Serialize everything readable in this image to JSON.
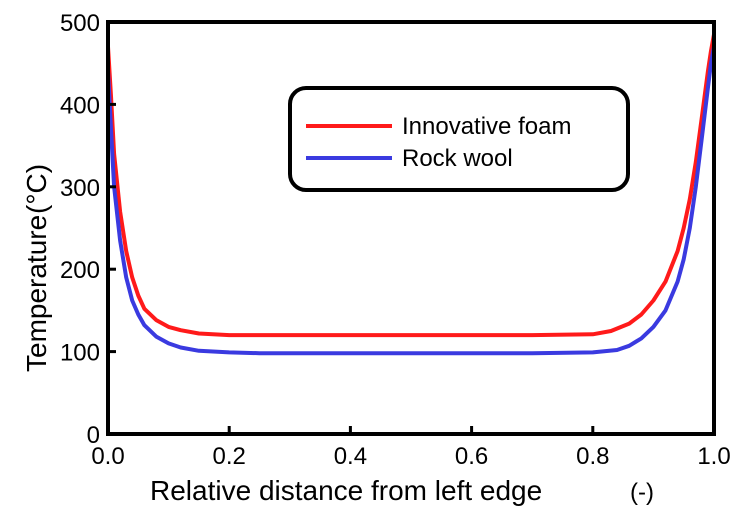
{
  "chart_data": {
    "type": "line",
    "title": "",
    "xlabel": "Relative distance from left edge",
    "xlabel_unit": "(-)",
    "ylabel": "Temperature",
    "ylabel_unit": "(°C)",
    "xlim": [
      0.0,
      1.0
    ],
    "ylim": [
      0,
      500
    ],
    "x_ticks": [
      0.0,
      0.2,
      0.4,
      0.6,
      0.8,
      1.0
    ],
    "x_tick_labels": [
      "0.0",
      "0.2",
      "0.4",
      "0.6",
      "0.8",
      "1.0"
    ],
    "y_ticks": [
      0,
      100,
      200,
      300,
      400,
      500
    ],
    "y_tick_labels": [
      "0",
      "100",
      "200",
      "300",
      "400",
      "500"
    ],
    "grid": false,
    "legend_position": "top-right",
    "series": [
      {
        "name": "Innovative foam",
        "color": "#ff1a1a",
        "x": [
          0.0,
          0.005,
          0.01,
          0.02,
          0.03,
          0.04,
          0.05,
          0.06,
          0.08,
          0.1,
          0.12,
          0.15,
          0.2,
          0.3,
          0.4,
          0.5,
          0.6,
          0.7,
          0.8,
          0.83,
          0.86,
          0.88,
          0.9,
          0.92,
          0.94,
          0.95,
          0.96,
          0.97,
          0.98,
          0.99,
          0.995,
          1.0
        ],
        "y": [
          470,
          410,
          340,
          270,
          222,
          190,
          168,
          152,
          138,
          130,
          126,
          122,
          120,
          120,
          120,
          120,
          120,
          120,
          121,
          125,
          134,
          145,
          162,
          185,
          222,
          250,
          285,
          330,
          385,
          440,
          465,
          485
        ]
      },
      {
        "name": "Rock wool",
        "color": "#3a3ae0",
        "x": [
          0.0,
          0.005,
          0.01,
          0.02,
          0.03,
          0.04,
          0.05,
          0.06,
          0.08,
          0.1,
          0.12,
          0.15,
          0.2,
          0.25,
          0.3,
          0.4,
          0.5,
          0.6,
          0.7,
          0.8,
          0.84,
          0.86,
          0.88,
          0.9,
          0.92,
          0.94,
          0.95,
          0.96,
          0.97,
          0.98,
          0.99,
          0.995,
          1.0
        ],
        "y": [
          440,
          370,
          300,
          235,
          190,
          162,
          145,
          132,
          118,
          110,
          105,
          101,
          99,
          98,
          98,
          98,
          98,
          98,
          98,
          99,
          102,
          107,
          116,
          130,
          150,
          185,
          212,
          250,
          300,
          360,
          420,
          450,
          470
        ]
      }
    ]
  }
}
